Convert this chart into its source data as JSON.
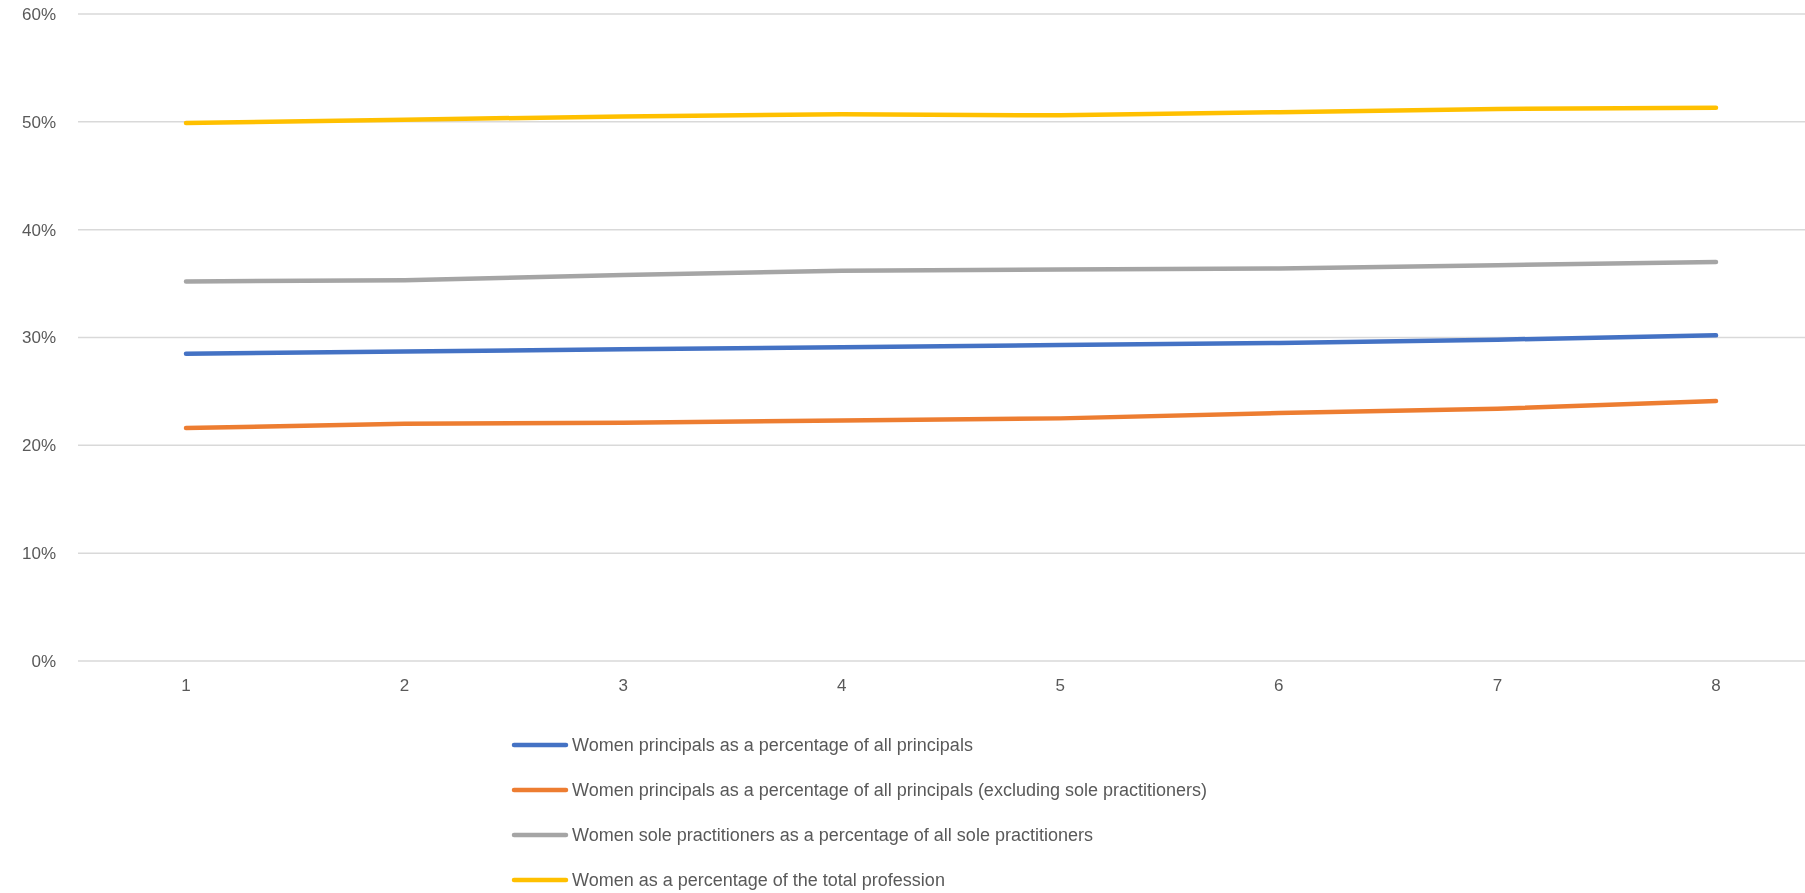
{
  "chart_data": {
    "type": "line",
    "categories": [
      "1",
      "2",
      "3",
      "4",
      "5",
      "6",
      "7",
      "8"
    ],
    "series": [
      {
        "name": "Women principals as a percentage of all principals",
        "color": "#4472c4",
        "values": [
          28.5,
          28.7,
          28.9,
          29.1,
          29.3,
          29.5,
          29.8,
          30.2
        ]
      },
      {
        "name": "Women principals as a percentage of all principals (excluding sole practitioners)",
        "color": "#ed7d31",
        "values": [
          21.6,
          22.0,
          22.1,
          22.3,
          22.5,
          23.0,
          23.4,
          24.1
        ]
      },
      {
        "name": "Women sole practitioners as a percentage of all sole practitioners",
        "color": "#a5a5a5",
        "values": [
          35.2,
          35.3,
          35.8,
          36.2,
          36.3,
          36.4,
          36.7,
          37.0
        ]
      },
      {
        "name": "Women as a percentage of the total profession",
        "color": "#ffc000",
        "values": [
          49.9,
          50.2,
          50.5,
          50.7,
          50.6,
          50.9,
          51.2,
          51.3
        ]
      }
    ],
    "ylim": [
      0,
      60
    ],
    "yticks": [
      {
        "value": 0,
        "label": "0%"
      },
      {
        "value": 10,
        "label": "10%"
      },
      {
        "value": 20,
        "label": "20%"
      },
      {
        "value": 30,
        "label": "30%"
      },
      {
        "value": 40,
        "label": "40%"
      },
      {
        "value": 50,
        "label": "50%"
      },
      {
        "value": 60,
        "label": "60%"
      }
    ],
    "grid": "y",
    "legend": "bottom",
    "marker": "none",
    "line_style": "solid"
  }
}
